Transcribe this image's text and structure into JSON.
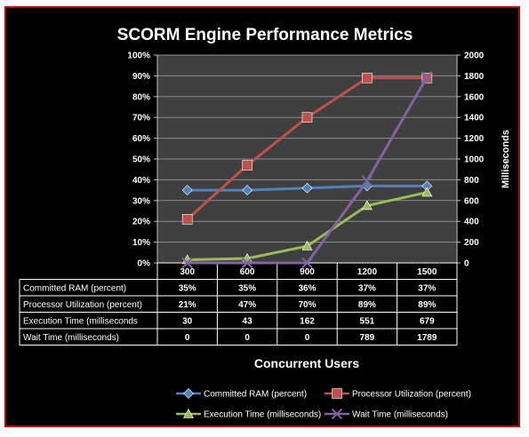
{
  "chart_data": {
    "type": "line",
    "title": "SCORM Engine Performance Metrics",
    "xlabel": "Concurrent Users",
    "ylabel_right": "Milliseconds",
    "categories": [
      "300",
      "600",
      "900",
      "1200",
      "1500"
    ],
    "y_left": {
      "lim": [
        0,
        100
      ],
      "ticks": [
        "0%",
        "10%",
        "20%",
        "30%",
        "40%",
        "50%",
        "60%",
        "70%",
        "80%",
        "90%",
        "100%"
      ]
    },
    "y_right": {
      "lim": [
        0,
        2000
      ],
      "ticks": [
        "0",
        "200",
        "400",
        "600",
        "800",
        "1000",
        "1200",
        "1400",
        "1600",
        "1800",
        "2000"
      ]
    },
    "grid": "horizontal",
    "legend_position": "bottom",
    "series": [
      {
        "name": "Committed RAM (percent)",
        "axis": "left",
        "color": "#4f81bd",
        "marker": "diamond",
        "values": [
          35,
          35,
          36,
          37,
          37
        ],
        "labels": [
          "35%",
          "35%",
          "36%",
          "37%",
          "37%"
        ]
      },
      {
        "name": "Processor Utilization (percent)",
        "axis": "left",
        "color": "#c0504d",
        "marker": "square",
        "values": [
          21,
          47,
          70,
          89,
          89
        ],
        "labels": [
          "21%",
          "47%",
          "70%",
          "89%",
          "89%"
        ]
      },
      {
        "name": "Execution Time (milliseconds)",
        "axis": "right",
        "color": "#9bbb59",
        "marker": "triangle",
        "values": [
          30,
          43,
          162,
          551,
          679
        ],
        "labels": [
          "30",
          "43",
          "162",
          "551",
          "679"
        ]
      },
      {
        "name": "Wait Time (milliseconds)",
        "axis": "right",
        "color": "#8064a2",
        "marker": "x",
        "values": [
          0,
          0,
          0,
          789,
          1789
        ],
        "labels": [
          "0",
          "0",
          "0",
          "789",
          "1789"
        ]
      }
    ],
    "table_row_labels": [
      "Committed RAM (percent)",
      "Processor Utilization (percent)",
      "Execution Time (milliseconds",
      "Wait Time (milliseconds)"
    ]
  },
  "colors": {
    "frame_border": "#c00000",
    "plot_area": "#3f3f3f",
    "background": "#000000",
    "gridline": "#8c8c8c",
    "text": "#ffffff"
  }
}
